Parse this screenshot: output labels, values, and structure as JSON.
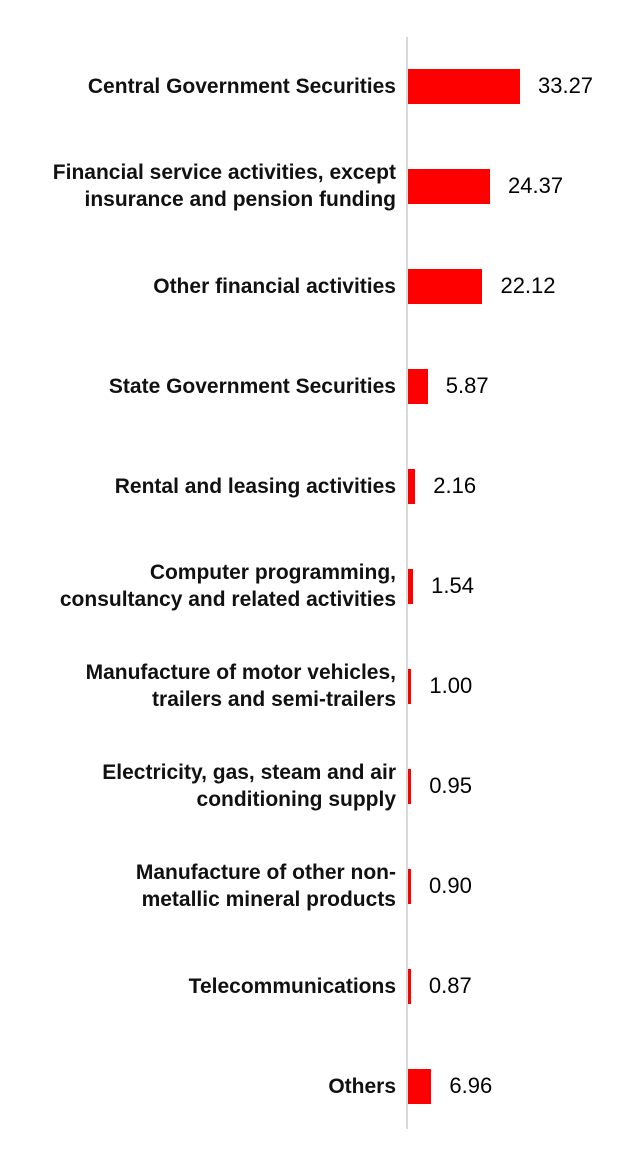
{
  "chart_data": {
    "type": "bar",
    "orientation": "horizontal",
    "title": "",
    "xlabel": "",
    "ylabel": "",
    "xlim": [
      0,
      35
    ],
    "grid": false,
    "legend": false,
    "bar_color": "#FF0000",
    "axis_line_color": "#D9D9D9",
    "categories": [
      "Central Government Securities",
      "Financial service activities, except insurance and pension funding",
      "Other financial activities",
      "State Government Securities",
      "Rental and leasing activities",
      "Computer programming, consultancy and related activities",
      "Manufacture of motor vehicles, trailers and semi-trailers",
      "Electricity, gas, steam and air conditioning supply",
      "Manufacture of other non-metallic mineral products",
      "Telecommunications",
      "Others"
    ],
    "label_lines": [
      [
        "Central Government Securities"
      ],
      [
        "Financial service activities, except",
        "insurance and pension funding"
      ],
      [
        "Other financial activities"
      ],
      [
        "State Government Securities"
      ],
      [
        "Rental and leasing activities"
      ],
      [
        "Computer programming,",
        "consultancy and related activities"
      ],
      [
        "Manufacture of motor vehicles,",
        "trailers and semi-trailers"
      ],
      [
        "Electricity, gas, steam and air",
        "conditioning supply"
      ],
      [
        "Manufacture of other non-",
        "metallic mineral products"
      ],
      [
        "Telecommunications"
      ],
      [
        "Others"
      ]
    ],
    "values": [
      33.27,
      24.37,
      22.12,
      5.87,
      2.16,
      1.54,
      1.0,
      0.95,
      0.9,
      0.87,
      6.96
    ],
    "value_labels": [
      "33.27",
      "24.37",
      "22.12",
      "5.87",
      "2.16",
      "1.54",
      "1.00",
      "0.95",
      "0.90",
      "0.87",
      "6.96"
    ]
  }
}
